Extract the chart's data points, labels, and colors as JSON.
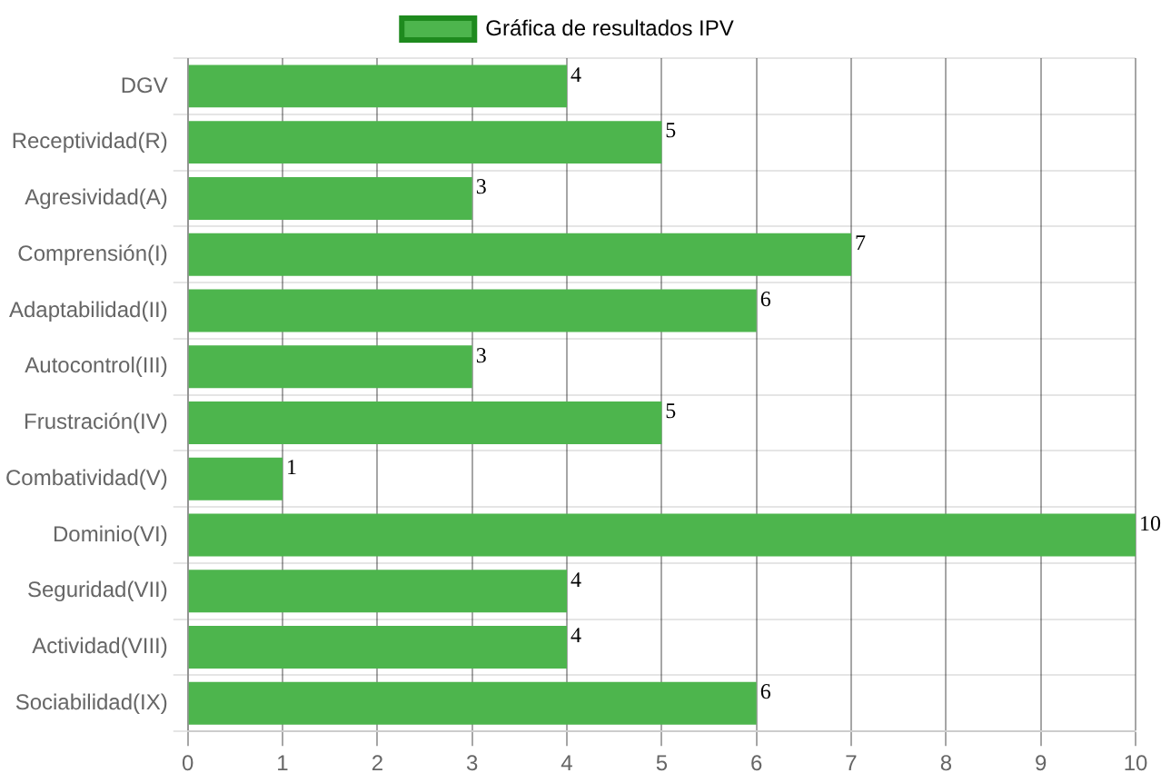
{
  "chart_data": {
    "type": "bar",
    "orientation": "horizontal",
    "categories": [
      "DGV",
      "Receptividad(R)",
      "Agresividad(A)",
      "Comprensión(I)",
      "Adaptabilidad(II)",
      "Autocontrol(III)",
      "Frustración(IV)",
      "Combatividad(V)",
      "Dominio(VI)",
      "Seguridad(VII)",
      "Actividad(VIII)",
      "Sociabilidad(IX)"
    ],
    "series": [
      {
        "name": "Gráfica de resultados IPV",
        "color": "#4db54d",
        "values": [
          4,
          5,
          3,
          7,
          6,
          3,
          5,
          1,
          10,
          4,
          4,
          6
        ]
      }
    ],
    "xlim": [
      0,
      10
    ],
    "xticks": [
      0,
      1,
      2,
      3,
      4,
      5,
      6,
      7,
      8,
      9,
      10
    ],
    "grid": true,
    "legend": "top",
    "data_labels": true
  }
}
